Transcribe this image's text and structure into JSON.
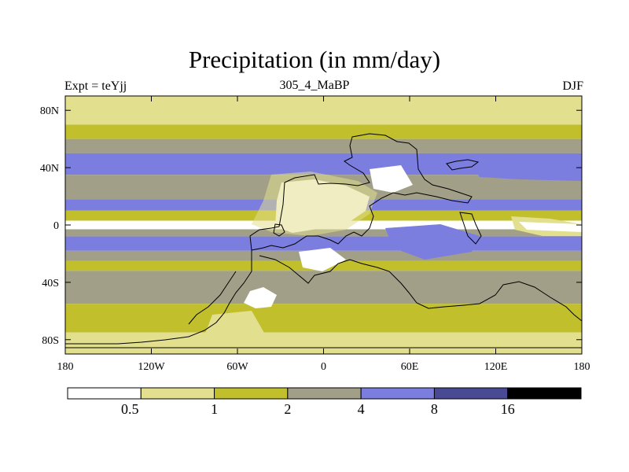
{
  "chart_data": {
    "type": "heatmap",
    "title": "Precipitation (in mm/day)",
    "subtitle_left": "Expt = teYjj",
    "subtitle_center": "305_4_MaBP",
    "subtitle_right": "DJF",
    "x_ticks": [
      "180",
      "120W",
      "60W",
      "0",
      "60E",
      "120E",
      "180"
    ],
    "x_tick_values": [
      -180,
      -120,
      -60,
      0,
      60,
      120,
      180
    ],
    "y_ticks": [
      "80N",
      "40N",
      "0",
      "40S",
      "80S"
    ],
    "y_tick_values": [
      80,
      40,
      0,
      -40,
      -80
    ],
    "xlim": [
      -180,
      180
    ],
    "ylim": [
      -90,
      90
    ],
    "colorbar": {
      "boundaries": [
        "0.5",
        "1",
        "2",
        "4",
        "8",
        "16"
      ],
      "colors": [
        "#ffffff",
        "#e2df8e",
        "#c1bf2c",
        "#a19f87",
        "#7b7ddf",
        "#4a4a94",
        "#000000"
      ]
    },
    "zonal_bands_mm_day": [
      {
        "lat": [
          70,
          90
        ],
        "value": 0.8
      },
      {
        "lat": [
          60,
          70
        ],
        "value": 1.5
      },
      {
        "lat": [
          50,
          60
        ],
        "value": 3.0
      },
      {
        "lat": [
          35,
          50
        ],
        "value": 5.0
      },
      {
        "lat": [
          28,
          35
        ],
        "value": 2.5
      },
      {
        "lat": [
          18,
          28
        ],
        "value": 3.0
      },
      {
        "lat": [
          10,
          18
        ],
        "value": 5.0
      },
      {
        "lat": [
          3,
          10
        ],
        "value": 1.2
      },
      {
        "lat": [
          -3,
          3
        ],
        "value": 0.4
      },
      {
        "lat": [
          -8,
          -3
        ],
        "value": 3.0
      },
      {
        "lat": [
          -18,
          -8
        ],
        "value": 6.0
      },
      {
        "lat": [
          -25,
          -18
        ],
        "value": 3.0
      },
      {
        "lat": [
          -32,
          -25
        ],
        "value": 1.5
      },
      {
        "lat": [
          -55,
          -32
        ],
        "value": 3.0
      },
      {
        "lat": [
          -75,
          -55
        ],
        "value": 1.5
      },
      {
        "lat": [
          -90,
          -75
        ],
        "value": 0.8
      }
    ]
  }
}
